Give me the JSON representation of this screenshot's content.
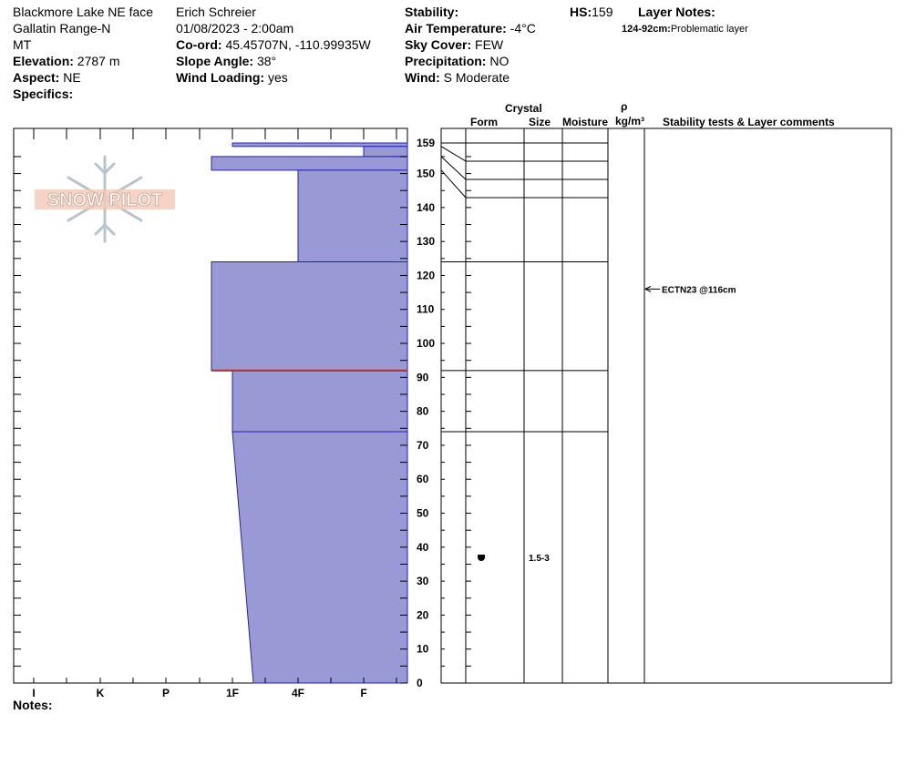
{
  "header": {
    "location": "Blackmore Lake NE face",
    "range": "Gallatin Range-N",
    "state": "MT",
    "elevation_label": "Elevation:",
    "elevation": "2787 m",
    "aspect_label": "Aspect:",
    "aspect": "NE",
    "specifics_label": "Specifics:",
    "observer": "Erich  Schreier",
    "datetime": "01/08/2023 - 2:00am",
    "coord_label": "Co-ord:",
    "coord": "45.45707N, -110.99935W",
    "slope_label": "Slope Angle:",
    "slope": "38°",
    "wind_loading_label": "Wind Loading:",
    "wind_loading": "yes",
    "stability_label": "Stability:",
    "air_temp_label": "Air Temperature:",
    "air_temp": "-4°C",
    "sky_label": "Sky Cover:",
    "sky": "FEW",
    "precip_label": "Precipitation:",
    "precip": "NO",
    "wind_label": "Wind:",
    "wind": " S Moderate",
    "hs_label": "HS:",
    "hs": "159",
    "layer_notes_label": "Layer Notes:",
    "layer_note_range": "124-92cm:",
    "layer_note_text": "Problematic layer",
    "notes_label": "Notes:"
  },
  "logo_text": "SNOW PILOT",
  "table_headers": {
    "crystal": "Crystal",
    "form": "Form",
    "size": "Size",
    "moisture": "Moisture",
    "rho": "ρ",
    "density": "kg/m³",
    "stability": "Stability tests & Layer comments"
  },
  "colors": {
    "layer_fill": "#9999d6",
    "layer_edge": "#2020c0",
    "problem_line": "#b03030"
  },
  "chart_data": {
    "type": "snow_profile",
    "hardness_scale": [
      "I",
      "K",
      "P",
      "1F",
      "4F",
      "F"
    ],
    "depth_range_cm": [
      0,
      159
    ],
    "depth_ticks": [
      0,
      10,
      20,
      30,
      40,
      50,
      60,
      70,
      80,
      90,
      100,
      110,
      120,
      130,
      140,
      150,
      159
    ],
    "layers": [
      {
        "top_cm": 159,
        "bottom_cm": 158,
        "hardness_top": "1F",
        "hardness_bottom": "1F"
      },
      {
        "top_cm": 158,
        "bottom_cm": 155,
        "hardness_top": "F",
        "hardness_bottom": "F"
      },
      {
        "top_cm": 155,
        "bottom_cm": 151,
        "hardness_top": "P+",
        "hardness_bottom": "P+"
      },
      {
        "top_cm": 151,
        "bottom_cm": 124,
        "hardness_top": "4F",
        "hardness_bottom": "4F"
      },
      {
        "top_cm": 124,
        "bottom_cm": 92,
        "hardness_top": "P+",
        "hardness_bottom": "P+"
      },
      {
        "top_cm": 92,
        "bottom_cm": 74,
        "hardness_top": "1F",
        "hardness_bottom": "1F"
      },
      {
        "top_cm": 74,
        "bottom_cm": 0,
        "hardness_top": "1F",
        "hardness_bottom": "1F+"
      }
    ],
    "problem_depth_cm": 92,
    "grain_form_depth_cm": 37,
    "grain_size": "1.5-3",
    "test_result": "ECTN23 @116cm",
    "test_depth_cm": 116
  }
}
